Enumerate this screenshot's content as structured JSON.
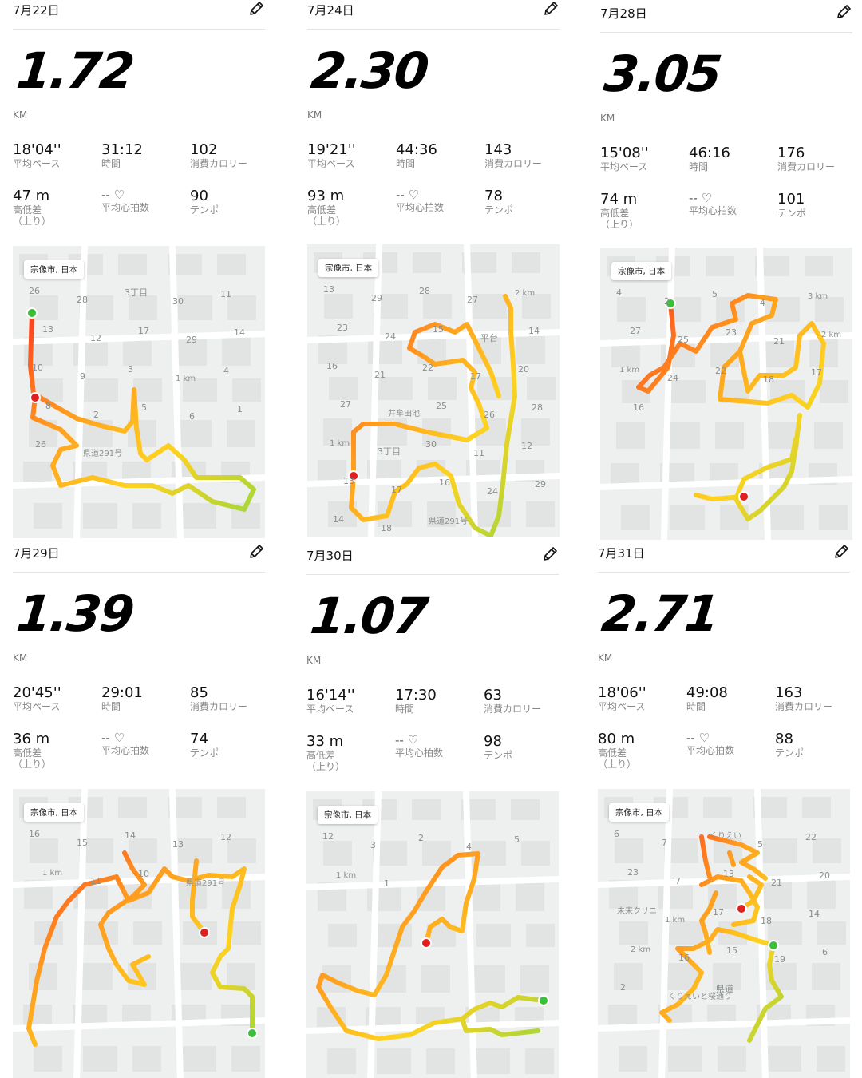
{
  "colors": {
    "start": "#3bbf3b",
    "end": "#e02020",
    "route_gradient": [
      "#ff3b1f",
      "#ff9b1f",
      "#ffd21f",
      "#a6d63a"
    ]
  },
  "cards": [
    {
      "date": "7月22日",
      "edit_icon": "pencil-icon",
      "distance": "1.72",
      "unit": "KM",
      "pace": "18'04''",
      "pace_label": "平均ペース",
      "time": "31:12",
      "time_label": "時間",
      "calories": "102",
      "calories_label": "消費カロリー",
      "elevation": "47 m",
      "elevation_label": "高低差\n（上り）",
      "heart": "-- ♡",
      "heart_label": "平均心拍数",
      "cadence": "90",
      "cadence_label": "テンポ",
      "location": "宗像市, 日本",
      "map_labels": [
        "26",
        "28",
        "3丁目",
        "30",
        "11",
        "13",
        "12",
        "17",
        "29",
        "14",
        "10",
        "9",
        "3",
        "1 km",
        "4",
        "8",
        "2",
        "5",
        "6",
        "1",
        "26",
        "県道291号"
      ]
    },
    {
      "date": "7月24日",
      "edit_icon": "pencil-icon",
      "distance": "2.30",
      "unit": "KM",
      "pace": "19'21''",
      "pace_label": "平均ペース",
      "time": "44:36",
      "time_label": "時間",
      "calories": "143",
      "calories_label": "消費カロリー",
      "elevation": "93 m",
      "elevation_label": "高低差\n（上り）",
      "heart": "-- ♡",
      "heart_label": "平均心拍数",
      "cadence": "78",
      "cadence_label": "テンポ",
      "location": "宗像市, 日本",
      "map_labels": [
        "13",
        "29",
        "28",
        "27",
        "2 km",
        "23",
        "24",
        "15",
        "平台",
        "14",
        "16",
        "21",
        "22",
        "17",
        "20",
        "27",
        "井牟田池",
        "25",
        "26",
        "28",
        "1 km",
        "3丁目",
        "30",
        "11",
        "12",
        "13",
        "17",
        "16",
        "24",
        "29",
        "14",
        "18",
        "県道291号"
      ]
    },
    {
      "date": "7月28日",
      "edit_icon": "pencil-icon",
      "distance": "3.05",
      "unit": "KM",
      "pace": "15'08''",
      "pace_label": "平均ペース",
      "time": "46:16",
      "time_label": "時間",
      "calories": "176",
      "calories_label": "消費カロリー",
      "elevation": "74 m",
      "elevation_label": "高低差\n（上り）",
      "heart": "-- ♡",
      "heart_label": "平均心拍数",
      "cadence": "101",
      "cadence_label": "テンポ",
      "location": "宗像市, 日本",
      "map_labels": [
        "4",
        "2",
        "5",
        "4",
        "3 km",
        "27",
        "25",
        "23",
        "21",
        "2 km",
        "1 km",
        "24",
        "22",
        "18",
        "17",
        "16"
      ]
    },
    {
      "date": "7月29日",
      "edit_icon": "pencil-icon",
      "distance": "1.39",
      "unit": "KM",
      "pace": "20'45''",
      "pace_label": "平均ペース",
      "time": "29:01",
      "time_label": "時間",
      "calories": "85",
      "calories_label": "消費カロリー",
      "elevation": "36 m",
      "elevation_label": "高低差\n（上り）",
      "heart": "-- ♡",
      "heart_label": "平均心拍数",
      "cadence": "74",
      "cadence_label": "テンポ",
      "location": "宗像市, 日本",
      "map_labels": [
        "16",
        "15",
        "14",
        "13",
        "12",
        "1 km",
        "11",
        "10",
        "県道291号"
      ]
    },
    {
      "date": "7月30日",
      "edit_icon": "pencil-icon",
      "distance": "1.07",
      "unit": "KM",
      "pace": "16'14''",
      "pace_label": "平均ペース",
      "time": "17:30",
      "time_label": "時間",
      "calories": "63",
      "calories_label": "消費カロリー",
      "elevation": "33 m",
      "elevation_label": "高低差\n（上り）",
      "heart": "-- ♡",
      "heart_label": "平均心拍数",
      "cadence": "98",
      "cadence_label": "テンポ",
      "location": "宗像市, 日本",
      "map_labels": [
        "12",
        "3",
        "2",
        "4",
        "5",
        "1 km",
        "1"
      ]
    },
    {
      "date": "7月31日",
      "edit_icon": "pencil-icon",
      "distance": "2.71",
      "unit": "KM",
      "pace": "18'06''",
      "pace_label": "平均ペース",
      "time": "49:08",
      "time_label": "時間",
      "calories": "163",
      "calories_label": "消費カロリー",
      "elevation": "80 m",
      "elevation_label": "高低差\n（上り）",
      "heart": "-- ♡",
      "heart_label": "平均心拍数",
      "cadence": "88",
      "cadence_label": "テンポ",
      "location": "宗像市, 日本",
      "map_labels": [
        "6",
        "7",
        "くりえい",
        "5",
        "22",
        "23",
        "7",
        "13",
        "21",
        "20",
        "未来クリニ",
        "1 km",
        "17",
        "18",
        "14",
        "2 km",
        "16",
        "15",
        "19",
        "6",
        "2",
        "くりえいと桜通り",
        "県道"
      ]
    }
  ]
}
